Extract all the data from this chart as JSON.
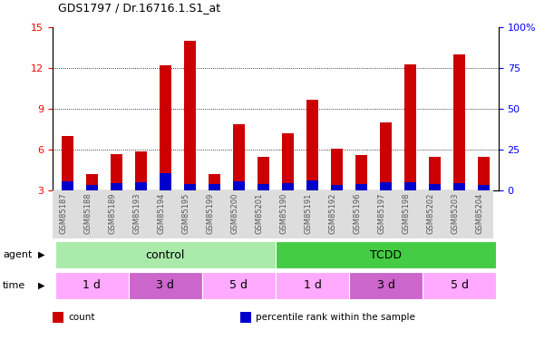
{
  "title": "GDS1797 / Dr.16716.1.S1_at",
  "samples": [
    "GSM85187",
    "GSM85188",
    "GSM85189",
    "GSM85193",
    "GSM85194",
    "GSM85195",
    "GSM85199",
    "GSM85200",
    "GSM85201",
    "GSM85190",
    "GSM85191",
    "GSM85192",
    "GSM85196",
    "GSM85197",
    "GSM85198",
    "GSM85202",
    "GSM85203",
    "GSM85204"
  ],
  "count_values": [
    7.0,
    4.2,
    5.7,
    5.9,
    12.2,
    14.0,
    4.2,
    7.9,
    5.5,
    7.2,
    9.7,
    6.1,
    5.6,
    8.0,
    12.3,
    5.5,
    13.0,
    5.5
  ],
  "percentile_values": [
    0.65,
    0.38,
    0.52,
    0.58,
    1.25,
    0.45,
    0.45,
    0.65,
    0.45,
    0.55,
    0.72,
    0.38,
    0.45,
    0.58,
    0.62,
    0.45,
    0.55,
    0.38
  ],
  "bar_color": "#cc0000",
  "percentile_color": "#0000cc",
  "ylim_left": [
    3,
    15
  ],
  "ylim_right": [
    0,
    100
  ],
  "yticks_left": [
    3,
    6,
    9,
    12,
    15
  ],
  "yticks_right": [
    0,
    25,
    50,
    75,
    100
  ],
  "grid_values": [
    6,
    9,
    12
  ],
  "agent_groups": [
    {
      "label": "control",
      "start": 0,
      "end": 9,
      "color": "#aaeaaa"
    },
    {
      "label": "TCDD",
      "start": 9,
      "end": 18,
      "color": "#44cc44"
    }
  ],
  "time_groups": [
    {
      "label": "1 d",
      "start": 0,
      "end": 3,
      "color": "#ffaaff"
    },
    {
      "label": "3 d",
      "start": 3,
      "end": 6,
      "color": "#cc66cc"
    },
    {
      "label": "5 d",
      "start": 6,
      "end": 9,
      "color": "#ffaaff"
    },
    {
      "label": "1 d",
      "start": 9,
      "end": 12,
      "color": "#ffaaff"
    },
    {
      "label": "3 d",
      "start": 12,
      "end": 15,
      "color": "#cc66cc"
    },
    {
      "label": "5 d",
      "start": 15,
      "end": 18,
      "color": "#ffaaff"
    }
  ],
  "legend_items": [
    {
      "label": "count",
      "color": "#cc0000"
    },
    {
      "label": "percentile rank within the sample",
      "color": "#0000cc"
    }
  ],
  "bar_width": 0.5,
  "background_color": "#ffffff",
  "plot_bg": "#ffffff",
  "tick_label_color": "#555555",
  "n_samples": 18
}
